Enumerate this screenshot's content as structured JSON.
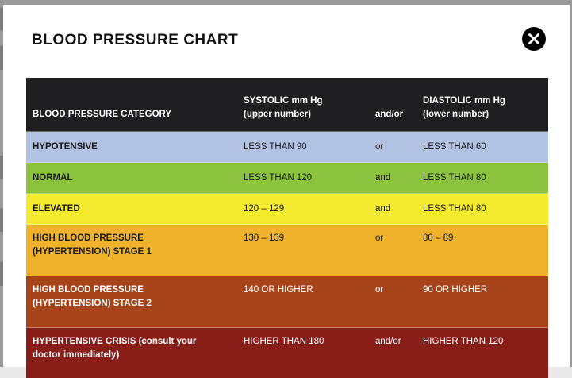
{
  "modal": {
    "title": "BLOOD PRESSURE CHART"
  },
  "table": {
    "headers": {
      "category": "BLOOD PRESSURE CATEGORY",
      "systolic_line1": "SYSTOLIC mm Hg",
      "systolic_line2": "(upper number)",
      "andor": "and/or",
      "diastolic_line1": "DIASTOLIC mm Hg",
      "diastolic_line2": "(lower number)"
    },
    "rows": [
      {
        "category": "HYPOTENSIVE",
        "systolic": "LESS THAN 90",
        "conj": "or",
        "diastolic": "LESS THAN 60",
        "color": "#b1c2e3"
      },
      {
        "category": "NORMAL",
        "systolic": "LESS THAN 120",
        "conj": "and",
        "diastolic": "LESS THAN 80",
        "color": "#8bc33f"
      },
      {
        "category": "ELEVATED",
        "systolic": "120 – 129",
        "conj": "and",
        "diastolic": "LESS THAN 80",
        "color": "#f5eb2e"
      },
      {
        "category_line1": "HIGH BLOOD PRESSURE",
        "category_line2": "(HYPERTENSION) STAGE 1",
        "systolic": "130 – 139",
        "conj": "or",
        "diastolic": "80 – 89",
        "color": "#f0b12b"
      },
      {
        "category_line1": "HIGH BLOOD PRESSURE",
        "category_line2": "(HYPERTENSION) STAGE 2",
        "systolic": "140 OR HIGHER",
        "conj": "or",
        "diastolic": "90 OR HIGHER",
        "color": "#a8441a"
      },
      {
        "category_link": "HYPERTENSIVE CRISIS",
        "category_rest_line1": " (consult your",
        "category_line2": "doctor immediately)",
        "systolic": "HIGHER THAN 180",
        "conj": "and/or",
        "diastolic": "HIGHER THAN 120",
        "color": "#891e18"
      }
    ]
  },
  "icons": {
    "close": "close-icon"
  }
}
